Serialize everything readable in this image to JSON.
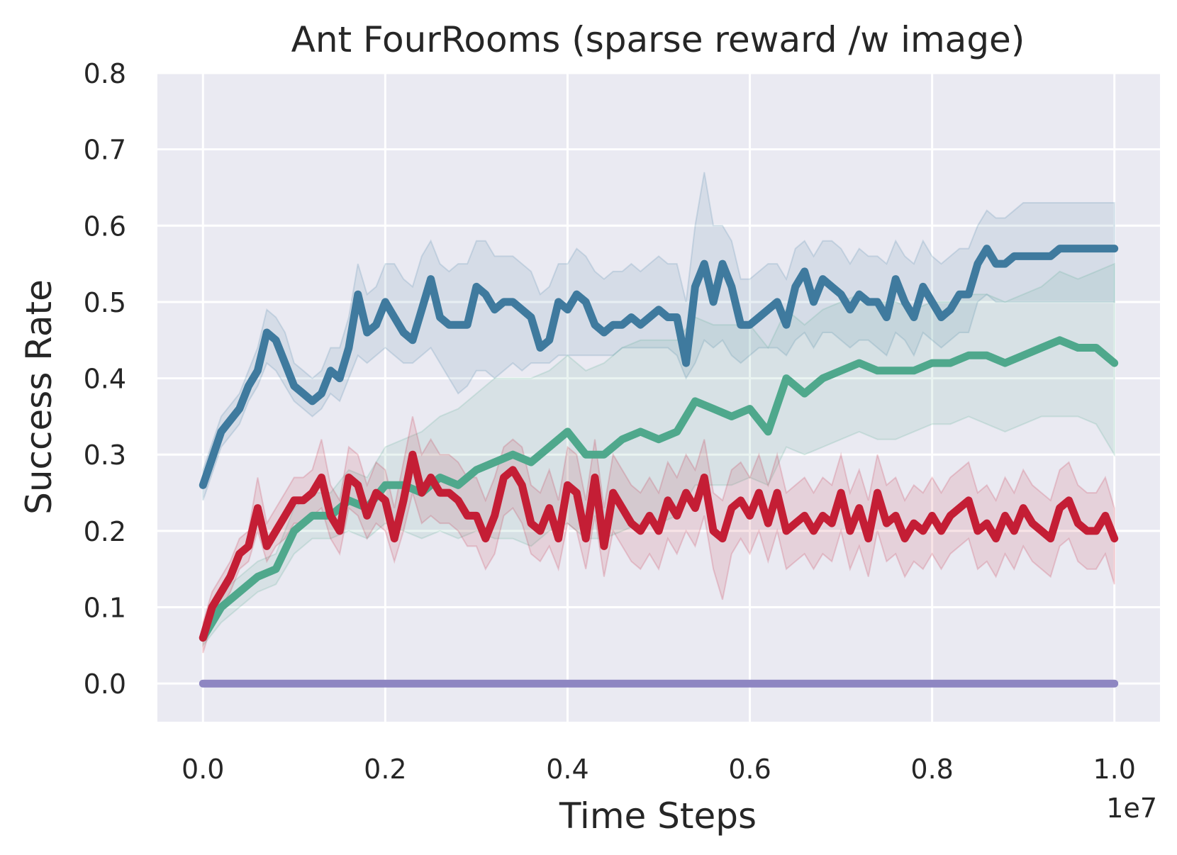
{
  "chart_data": {
    "type": "line",
    "title": "Ant FourRooms (sparse reward /w image)",
    "xlabel": "Time Steps",
    "ylabel": "Success Rate",
    "x_offset_label": "1e7",
    "xlim": [
      -0.05,
      1.05
    ],
    "ylim": [
      -0.05,
      0.8
    ],
    "xticks": [
      0.0,
      0.2,
      0.4,
      0.6,
      0.8,
      1.0
    ],
    "xtick_labels": [
      "0.0",
      "0.2",
      "0.4",
      "0.6",
      "0.8",
      "1.0"
    ],
    "yticks": [
      0.0,
      0.1,
      0.2,
      0.3,
      0.4,
      0.5,
      0.6,
      0.7,
      0.8
    ],
    "ytick_labels": [
      "0.0",
      "0.1",
      "0.2",
      "0.3",
      "0.4",
      "0.5",
      "0.6",
      "0.7",
      "0.8"
    ],
    "grid": true,
    "colors": {
      "background": "#eaeaf2",
      "grid": "#ffffff",
      "text": "#262626"
    },
    "series": [
      {
        "color": "#3f7a9e",
        "x": [
          0.0,
          0.02,
          0.04,
          0.05,
          0.06,
          0.07,
          0.08,
          0.09,
          0.1,
          0.11,
          0.12,
          0.13,
          0.14,
          0.15,
          0.16,
          0.17,
          0.18,
          0.19,
          0.2,
          0.21,
          0.22,
          0.23,
          0.24,
          0.25,
          0.26,
          0.27,
          0.28,
          0.29,
          0.3,
          0.31,
          0.32,
          0.33,
          0.34,
          0.35,
          0.36,
          0.37,
          0.38,
          0.39,
          0.4,
          0.41,
          0.42,
          0.43,
          0.44,
          0.45,
          0.46,
          0.47,
          0.48,
          0.49,
          0.5,
          0.51,
          0.52,
          0.53,
          0.54,
          0.55,
          0.56,
          0.57,
          0.58,
          0.59,
          0.6,
          0.61,
          0.62,
          0.63,
          0.64,
          0.65,
          0.66,
          0.67,
          0.68,
          0.69,
          0.7,
          0.71,
          0.72,
          0.73,
          0.74,
          0.75,
          0.76,
          0.77,
          0.78,
          0.79,
          0.8,
          0.81,
          0.82,
          0.83,
          0.84,
          0.85,
          0.86,
          0.87,
          0.88,
          0.89,
          0.9,
          0.91,
          0.92,
          0.93,
          0.94,
          0.95,
          0.96,
          0.97,
          0.98,
          0.99,
          1.0
        ],
        "y": [
          0.26,
          0.33,
          0.36,
          0.39,
          0.41,
          0.46,
          0.45,
          0.42,
          0.39,
          0.38,
          0.37,
          0.38,
          0.41,
          0.4,
          0.44,
          0.51,
          0.46,
          0.47,
          0.5,
          0.48,
          0.46,
          0.45,
          0.49,
          0.53,
          0.48,
          0.47,
          0.47,
          0.47,
          0.52,
          0.51,
          0.49,
          0.5,
          0.5,
          0.49,
          0.48,
          0.44,
          0.45,
          0.5,
          0.49,
          0.51,
          0.5,
          0.47,
          0.46,
          0.47,
          0.47,
          0.48,
          0.47,
          0.48,
          0.49,
          0.48,
          0.48,
          0.42,
          0.52,
          0.55,
          0.5,
          0.55,
          0.52,
          0.47,
          0.47,
          0.48,
          0.49,
          0.5,
          0.47,
          0.52,
          0.54,
          0.5,
          0.53,
          0.52,
          0.51,
          0.49,
          0.51,
          0.5,
          0.5,
          0.48,
          0.53,
          0.5,
          0.48,
          0.52,
          0.5,
          0.48,
          0.49,
          0.51,
          0.51,
          0.55,
          0.57,
          0.55,
          0.55,
          0.56,
          0.56,
          0.56,
          0.56,
          0.56,
          0.57,
          0.57,
          0.57,
          0.57,
          0.57,
          0.57,
          0.57
        ],
        "band_lower": [
          0.24,
          0.31,
          0.34,
          0.37,
          0.39,
          0.42,
          0.41,
          0.39,
          0.37,
          0.36,
          0.35,
          0.36,
          0.38,
          0.37,
          0.4,
          0.43,
          0.42,
          0.43,
          0.44,
          0.43,
          0.42,
          0.42,
          0.43,
          0.44,
          0.42,
          0.4,
          0.38,
          0.39,
          0.41,
          0.41,
          0.4,
          0.41,
          0.42,
          0.41,
          0.42,
          0.42,
          0.42,
          0.43,
          0.43,
          0.43,
          0.43,
          0.43,
          0.43,
          0.43,
          0.44,
          0.44,
          0.44,
          0.44,
          0.44,
          0.44,
          0.43,
          0.4,
          0.42,
          0.45,
          0.44,
          0.45,
          0.43,
          0.42,
          0.43,
          0.44,
          0.44,
          0.44,
          0.43,
          0.45,
          0.46,
          0.44,
          0.46,
          0.46,
          0.45,
          0.44,
          0.45,
          0.45,
          0.44,
          0.43,
          0.46,
          0.45,
          0.43,
          0.46,
          0.45,
          0.44,
          0.45,
          0.46,
          0.46,
          0.5,
          0.51,
          0.5,
          0.5,
          0.5,
          0.5,
          0.5,
          0.5,
          0.5,
          0.5,
          0.5,
          0.5,
          0.5,
          0.5,
          0.5,
          0.5
        ],
        "band_upper": [
          0.28,
          0.35,
          0.38,
          0.41,
          0.44,
          0.49,
          0.48,
          0.46,
          0.42,
          0.41,
          0.4,
          0.41,
          0.44,
          0.44,
          0.48,
          0.55,
          0.51,
          0.52,
          0.55,
          0.55,
          0.53,
          0.52,
          0.56,
          0.58,
          0.55,
          0.54,
          0.55,
          0.55,
          0.58,
          0.58,
          0.56,
          0.56,
          0.56,
          0.55,
          0.54,
          0.51,
          0.52,
          0.55,
          0.55,
          0.57,
          0.56,
          0.54,
          0.53,
          0.54,
          0.54,
          0.55,
          0.54,
          0.55,
          0.56,
          0.55,
          0.55,
          0.5,
          0.6,
          0.67,
          0.6,
          0.6,
          0.58,
          0.53,
          0.53,
          0.54,
          0.55,
          0.55,
          0.53,
          0.57,
          0.58,
          0.56,
          0.58,
          0.58,
          0.57,
          0.55,
          0.57,
          0.56,
          0.56,
          0.55,
          0.58,
          0.56,
          0.55,
          0.58,
          0.56,
          0.55,
          0.56,
          0.57,
          0.57,
          0.6,
          0.62,
          0.61,
          0.61,
          0.62,
          0.63,
          0.63,
          0.63,
          0.63,
          0.63,
          0.63,
          0.63,
          0.63,
          0.63,
          0.63,
          0.63
        ]
      },
      {
        "color": "#4fa88c",
        "x": [
          0.0,
          0.02,
          0.04,
          0.06,
          0.08,
          0.1,
          0.12,
          0.14,
          0.16,
          0.18,
          0.2,
          0.22,
          0.24,
          0.26,
          0.28,
          0.3,
          0.32,
          0.34,
          0.36,
          0.38,
          0.4,
          0.42,
          0.44,
          0.46,
          0.48,
          0.5,
          0.52,
          0.54,
          0.56,
          0.58,
          0.6,
          0.62,
          0.64,
          0.66,
          0.68,
          0.7,
          0.72,
          0.74,
          0.76,
          0.78,
          0.8,
          0.82,
          0.84,
          0.86,
          0.88,
          0.9,
          0.92,
          0.94,
          0.96,
          0.98,
          1.0
        ],
        "y": [
          0.06,
          0.1,
          0.12,
          0.14,
          0.15,
          0.2,
          0.22,
          0.22,
          0.24,
          0.23,
          0.26,
          0.26,
          0.25,
          0.27,
          0.26,
          0.28,
          0.29,
          0.3,
          0.29,
          0.31,
          0.33,
          0.3,
          0.3,
          0.32,
          0.33,
          0.32,
          0.33,
          0.37,
          0.36,
          0.35,
          0.36,
          0.33,
          0.4,
          0.38,
          0.4,
          0.41,
          0.42,
          0.41,
          0.41,
          0.41,
          0.42,
          0.42,
          0.43,
          0.43,
          0.42,
          0.43,
          0.44,
          0.45,
          0.44,
          0.44,
          0.42
        ],
        "band_lower": [
          0.05,
          0.08,
          0.1,
          0.12,
          0.13,
          0.17,
          0.19,
          0.19,
          0.2,
          0.19,
          0.21,
          0.2,
          0.19,
          0.2,
          0.19,
          0.2,
          0.19,
          0.19,
          0.18,
          0.2,
          0.21,
          0.19,
          0.19,
          0.2,
          0.21,
          0.21,
          0.22,
          0.26,
          0.26,
          0.26,
          0.27,
          0.26,
          0.31,
          0.3,
          0.31,
          0.32,
          0.33,
          0.32,
          0.32,
          0.33,
          0.34,
          0.34,
          0.35,
          0.34,
          0.33,
          0.34,
          0.35,
          0.35,
          0.35,
          0.34,
          0.3
        ],
        "band_upper": [
          0.07,
          0.12,
          0.14,
          0.16,
          0.17,
          0.23,
          0.25,
          0.25,
          0.28,
          0.27,
          0.31,
          0.32,
          0.33,
          0.35,
          0.36,
          0.38,
          0.4,
          0.4,
          0.4,
          0.41,
          0.43,
          0.41,
          0.42,
          0.44,
          0.45,
          0.45,
          0.45,
          0.48,
          0.47,
          0.47,
          0.47,
          0.44,
          0.49,
          0.47,
          0.49,
          0.5,
          0.51,
          0.5,
          0.5,
          0.49,
          0.5,
          0.5,
          0.51,
          0.51,
          0.5,
          0.51,
          0.52,
          0.54,
          0.53,
          0.54,
          0.55
        ]
      },
      {
        "color": "#c41e35",
        "x": [
          0.0,
          0.01,
          0.02,
          0.03,
          0.04,
          0.05,
          0.06,
          0.07,
          0.08,
          0.09,
          0.1,
          0.11,
          0.12,
          0.13,
          0.14,
          0.15,
          0.16,
          0.17,
          0.18,
          0.19,
          0.2,
          0.21,
          0.22,
          0.23,
          0.24,
          0.25,
          0.26,
          0.27,
          0.28,
          0.29,
          0.3,
          0.31,
          0.32,
          0.33,
          0.34,
          0.35,
          0.36,
          0.37,
          0.38,
          0.39,
          0.4,
          0.41,
          0.42,
          0.43,
          0.44,
          0.45,
          0.46,
          0.47,
          0.48,
          0.49,
          0.5,
          0.51,
          0.52,
          0.53,
          0.54,
          0.55,
          0.56,
          0.57,
          0.58,
          0.59,
          0.6,
          0.61,
          0.62,
          0.63,
          0.64,
          0.65,
          0.66,
          0.67,
          0.68,
          0.69,
          0.7,
          0.71,
          0.72,
          0.73,
          0.74,
          0.75,
          0.76,
          0.77,
          0.78,
          0.79,
          0.8,
          0.81,
          0.82,
          0.83,
          0.84,
          0.85,
          0.86,
          0.87,
          0.88,
          0.89,
          0.9,
          0.91,
          0.92,
          0.93,
          0.94,
          0.95,
          0.96,
          0.97,
          0.98,
          0.99,
          1.0
        ],
        "y": [
          0.06,
          0.1,
          0.12,
          0.14,
          0.17,
          0.18,
          0.23,
          0.18,
          0.2,
          0.22,
          0.24,
          0.24,
          0.25,
          0.27,
          0.22,
          0.2,
          0.27,
          0.26,
          0.22,
          0.25,
          0.24,
          0.19,
          0.24,
          0.3,
          0.25,
          0.27,
          0.25,
          0.25,
          0.24,
          0.22,
          0.22,
          0.19,
          0.22,
          0.27,
          0.28,
          0.26,
          0.21,
          0.2,
          0.23,
          0.19,
          0.26,
          0.25,
          0.19,
          0.27,
          0.18,
          0.25,
          0.23,
          0.21,
          0.2,
          0.22,
          0.2,
          0.24,
          0.22,
          0.25,
          0.23,
          0.27,
          0.2,
          0.19,
          0.23,
          0.24,
          0.22,
          0.25,
          0.21,
          0.25,
          0.2,
          0.21,
          0.22,
          0.2,
          0.22,
          0.21,
          0.25,
          0.2,
          0.23,
          0.19,
          0.25,
          0.21,
          0.22,
          0.19,
          0.21,
          0.2,
          0.22,
          0.2,
          0.22,
          0.23,
          0.24,
          0.2,
          0.21,
          0.19,
          0.22,
          0.2,
          0.23,
          0.21,
          0.2,
          0.19,
          0.23,
          0.24,
          0.21,
          0.2,
          0.2,
          0.22,
          0.19
        ],
        "band_lower": [
          0.04,
          0.08,
          0.1,
          0.12,
          0.15,
          0.16,
          0.2,
          0.16,
          0.18,
          0.19,
          0.21,
          0.21,
          0.22,
          0.23,
          0.19,
          0.17,
          0.23,
          0.22,
          0.19,
          0.21,
          0.2,
          0.16,
          0.2,
          0.25,
          0.21,
          0.22,
          0.21,
          0.21,
          0.2,
          0.18,
          0.18,
          0.15,
          0.17,
          0.22,
          0.23,
          0.21,
          0.17,
          0.16,
          0.18,
          0.15,
          0.21,
          0.2,
          0.15,
          0.22,
          0.14,
          0.2,
          0.18,
          0.16,
          0.15,
          0.17,
          0.15,
          0.19,
          0.17,
          0.2,
          0.18,
          0.22,
          0.15,
          0.11,
          0.17,
          0.19,
          0.17,
          0.2,
          0.16,
          0.2,
          0.15,
          0.16,
          0.17,
          0.15,
          0.17,
          0.16,
          0.2,
          0.15,
          0.18,
          0.14,
          0.2,
          0.16,
          0.17,
          0.14,
          0.16,
          0.15,
          0.17,
          0.15,
          0.17,
          0.18,
          0.19,
          0.15,
          0.16,
          0.14,
          0.17,
          0.15,
          0.18,
          0.16,
          0.15,
          0.14,
          0.18,
          0.19,
          0.16,
          0.15,
          0.15,
          0.17,
          0.13
        ],
        "band_upper": [
          0.08,
          0.12,
          0.14,
          0.16,
          0.19,
          0.2,
          0.27,
          0.21,
          0.23,
          0.25,
          0.27,
          0.27,
          0.28,
          0.32,
          0.26,
          0.24,
          0.31,
          0.3,
          0.26,
          0.29,
          0.28,
          0.23,
          0.29,
          0.35,
          0.3,
          0.32,
          0.3,
          0.3,
          0.29,
          0.27,
          0.27,
          0.24,
          0.27,
          0.31,
          0.32,
          0.31,
          0.26,
          0.25,
          0.28,
          0.24,
          0.31,
          0.3,
          0.24,
          0.32,
          0.23,
          0.3,
          0.28,
          0.26,
          0.25,
          0.27,
          0.25,
          0.29,
          0.27,
          0.3,
          0.28,
          0.32,
          0.25,
          0.24,
          0.28,
          0.29,
          0.27,
          0.3,
          0.26,
          0.3,
          0.25,
          0.26,
          0.27,
          0.25,
          0.27,
          0.26,
          0.3,
          0.25,
          0.28,
          0.24,
          0.3,
          0.26,
          0.27,
          0.24,
          0.26,
          0.25,
          0.27,
          0.25,
          0.27,
          0.28,
          0.29,
          0.25,
          0.26,
          0.24,
          0.27,
          0.25,
          0.28,
          0.26,
          0.25,
          0.24,
          0.28,
          0.29,
          0.26,
          0.25,
          0.25,
          0.27,
          0.23
        ]
      },
      {
        "color": "#8e86c2",
        "x": [
          0.0,
          1.0
        ],
        "y": [
          0.0,
          0.0
        ]
      }
    ]
  }
}
